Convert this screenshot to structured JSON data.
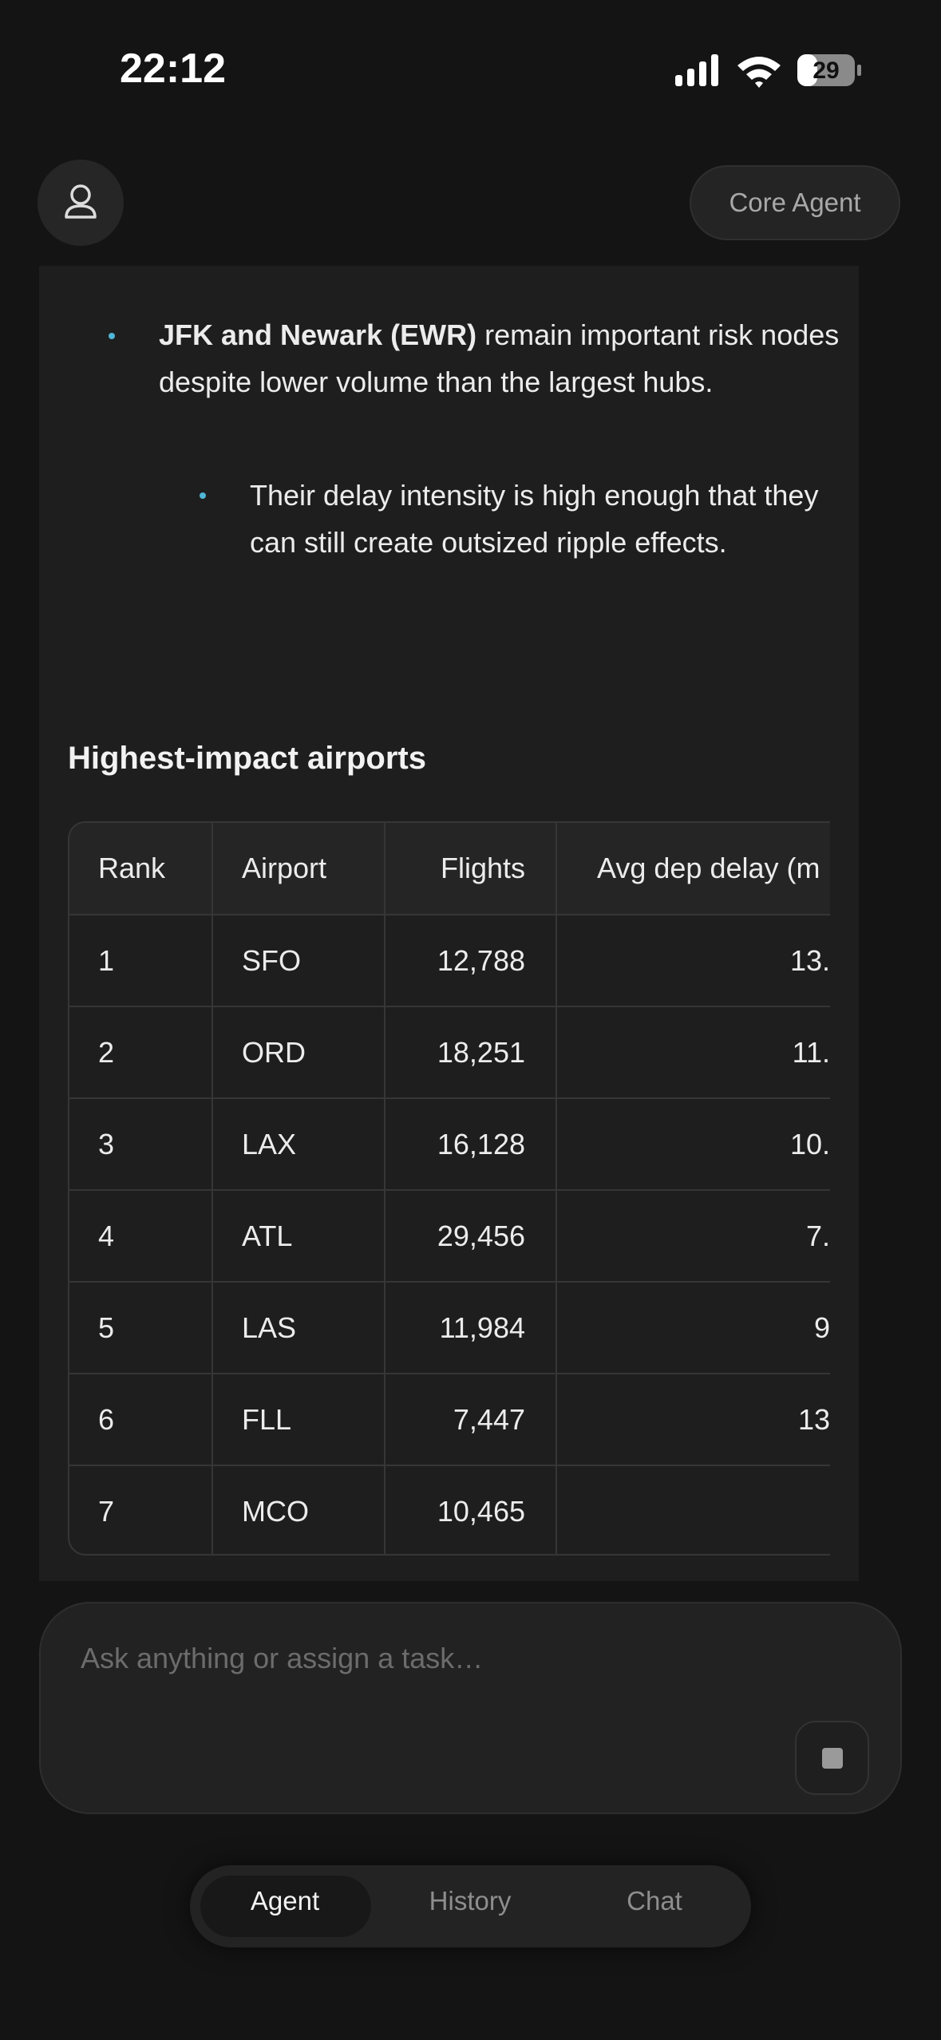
{
  "status_bar": {
    "time": "22:12",
    "battery": "29"
  },
  "header": {
    "agent_button": "Core Agent"
  },
  "content": {
    "bullet": {
      "bold": "JFK and Newark (EWR)",
      "text": "remain important risk nodes despite lower volume than the largest hubs.",
      "sub_bullet": "Their delay intensity is high enough that they can still create outsized ripple effects."
    },
    "table_title": "Highest-impact airports",
    "table": {
      "columns": [
        "Rank",
        "Airport",
        "Flights",
        "Avg dep delay (m"
      ],
      "rows": [
        [
          "1",
          "SFO",
          "12,788",
          "13."
        ],
        [
          "2",
          "ORD",
          "18,251",
          "11."
        ],
        [
          "3",
          "LAX",
          "16,128",
          "10."
        ],
        [
          "4",
          "ATL",
          "29,456",
          "7."
        ],
        [
          "5",
          "LAS",
          "11,984",
          "9"
        ],
        [
          "6",
          "FLL",
          "7,447",
          "13"
        ],
        [
          "7",
          "MCO",
          "10,465"
        ]
      ]
    }
  },
  "composer": {
    "placeholder": "Ask anything or assign a task…"
  },
  "tabs": [
    "Agent",
    "History",
    "Chat"
  ]
}
